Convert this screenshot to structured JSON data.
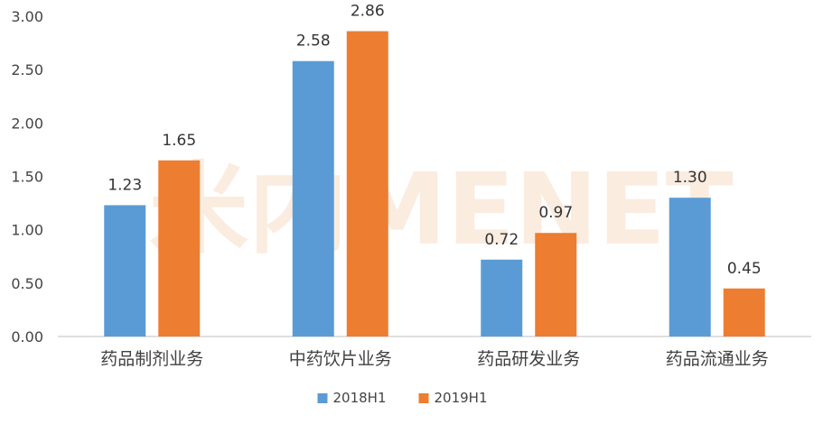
{
  "chart_data": {
    "type": "bar",
    "categories": [
      "药品制剂业务",
      "中药饮片业务",
      "药品研发业务",
      "药品流通业务"
    ],
    "series": [
      {
        "name": "2018H1",
        "color": "#5b9bd5",
        "values": [
          1.23,
          2.58,
          0.72,
          1.3
        ],
        "labels": [
          "1.23",
          "2.58",
          "0.72",
          "1.30"
        ]
      },
      {
        "name": "2019H1",
        "color": "#ed7d31",
        "values": [
          1.65,
          2.86,
          0.97,
          0.45
        ],
        "labels": [
          "1.65",
          "2.86",
          "0.97",
          "0.45"
        ]
      }
    ],
    "ylim": [
      0,
      3.0
    ],
    "yticks": [
      0,
      0.5,
      1.0,
      1.5,
      2.0,
      2.5,
      3.0
    ],
    "ytick_labels": [
      "0.00",
      "0.50",
      "1.00",
      "1.50",
      "2.00",
      "2.50",
      "3.00"
    ],
    "grid": false,
    "legend_position": "bottom-center"
  },
  "watermark": "米内MENET"
}
